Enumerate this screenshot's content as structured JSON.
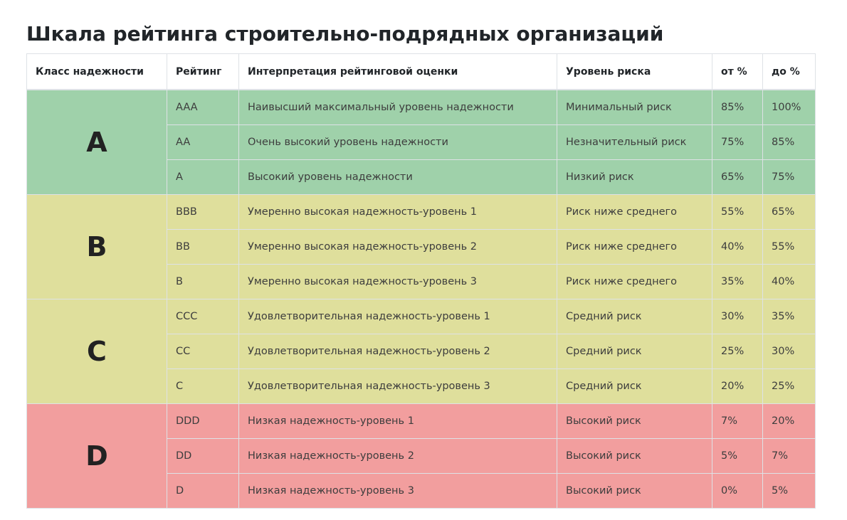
{
  "title": "Шкала рейтинга строительно-подрядных организаций",
  "colors": {
    "A": "#9fd1aa",
    "B": "#dfdf9c",
    "C": "#dfdf9c",
    "D": "#f29e9e",
    "border": "#dee2e6"
  },
  "table": {
    "headers": {
      "class": "Класс надежности",
      "rating": "Рейтинг",
      "interpretation": "Интерпретация рейтинговой оценки",
      "risk": "Уровень риска",
      "from": "от %",
      "to": "до %"
    },
    "groups": [
      {
        "class": "A",
        "rows": [
          {
            "rating": "AAA",
            "interpretation": "Наивысший максимальный уровень надежности",
            "risk": "Минимальный риск",
            "from": "85%",
            "to": "100%"
          },
          {
            "rating": "AA",
            "interpretation": "Очень высокий уровень надежности",
            "risk": "Незначительный риск",
            "from": "75%",
            "to": "85%"
          },
          {
            "rating": "A",
            "interpretation": "Высокий уровень надежности",
            "risk": "Низкий риск",
            "from": "65%",
            "to": "75%"
          }
        ]
      },
      {
        "class": "B",
        "rows": [
          {
            "rating": "BBB",
            "interpretation": "Умеренно высокая надежность-уровень 1",
            "risk": "Риск ниже среднего",
            "from": "55%",
            "to": "65%"
          },
          {
            "rating": "BB",
            "interpretation": "Умеренно высокая надежность-уровень 2",
            "risk": "Риск ниже среднего",
            "from": "40%",
            "to": "55%"
          },
          {
            "rating": "B",
            "interpretation": "Умеренно высокая надежность-уровень 3",
            "risk": "Риск ниже среднего",
            "from": "35%",
            "to": "40%"
          }
        ]
      },
      {
        "class": "C",
        "rows": [
          {
            "rating": "CCC",
            "interpretation": "Удовлетворительная надежность-уровень 1",
            "risk": "Средний риск",
            "from": "30%",
            "to": "35%"
          },
          {
            "rating": "CC",
            "interpretation": "Удовлетворительная надежность-уровень 2",
            "risk": "Средний риск",
            "from": "25%",
            "to": "30%"
          },
          {
            "rating": "C",
            "interpretation": "Удовлетворительная надежность-уровень 3",
            "risk": "Средний риск",
            "from": "20%",
            "to": "25%"
          }
        ]
      },
      {
        "class": "D",
        "rows": [
          {
            "rating": "DDD",
            "interpretation": "Низкая надежность-уровень 1",
            "risk": "Высокий риск",
            "from": "7%",
            "to": "20%"
          },
          {
            "rating": "DD",
            "interpretation": "Низкая надежность-уровень 2",
            "risk": "Высокий риск",
            "from": "5%",
            "to": "7%"
          },
          {
            "rating": "D",
            "interpretation": "Низкая надежность-уровень 3",
            "risk": "Высокий риск",
            "from": "0%",
            "to": "5%"
          }
        ]
      }
    ]
  }
}
